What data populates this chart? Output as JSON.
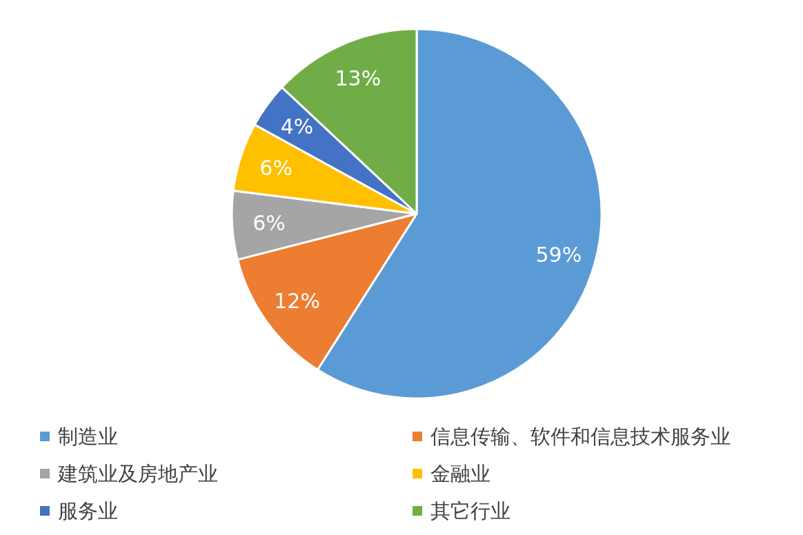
{
  "chart_data": {
    "type": "pie",
    "categories": [
      "制造业",
      "信息传输、软件和信息技术服务业",
      "建筑业及房地产业",
      "金融业",
      "服务业",
      "其它行业"
    ],
    "values": [
      59,
      12,
      6,
      6,
      4,
      13
    ],
    "colors": [
      "#5b9bd5",
      "#ed7d31",
      "#a5a5a5",
      "#ffc000",
      "#4472c4",
      "#70ad47"
    ],
    "value_labels": [
      "59%",
      "12%",
      "6%",
      "6%",
      "4%",
      "13%"
    ],
    "legend": "bottom"
  }
}
